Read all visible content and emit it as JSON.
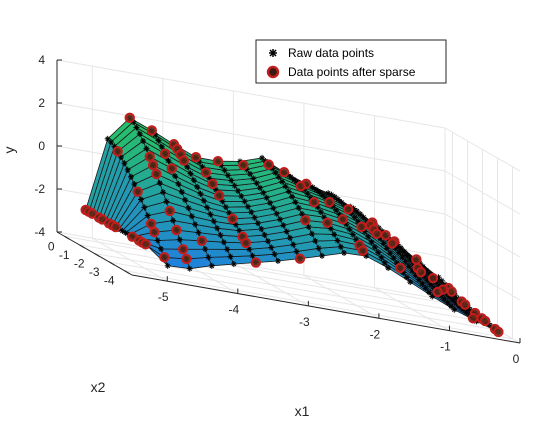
{
  "chart_data": {
    "type": "surface3d",
    "title": "",
    "xlabel": "x1",
    "ylabel": "x2",
    "zlabel": "y",
    "xlim": [
      -5.5,
      0
    ],
    "ylim": [
      -4.5,
      0.5
    ],
    "zlim": [
      -4,
      4
    ],
    "xticks": [
      "-5",
      "-4",
      "-3",
      "-2",
      "-1",
      "0"
    ],
    "yticks": [
      "0",
      "-1",
      "-2",
      "-3",
      "-4"
    ],
    "zticks": [
      "4",
      "2",
      "0",
      "-2",
      "-4"
    ],
    "grid": true,
    "legend_position": "top-right",
    "colormap": "winter",
    "series": [
      {
        "name": "Raw data points",
        "marker": "asterisk",
        "color": "#000000"
      },
      {
        "name": "Data points after sparse",
        "marker": "circle",
        "color": "#d01818"
      }
    ]
  }
}
